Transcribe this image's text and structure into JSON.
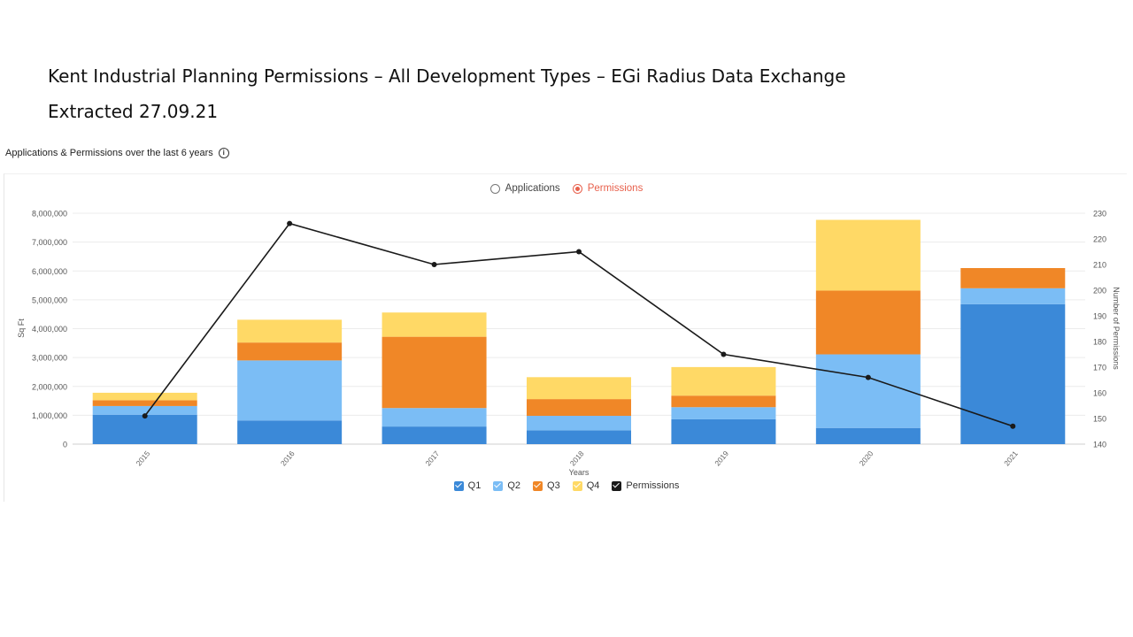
{
  "slide": {
    "title": "Kent Industrial Planning Permissions – All Development Types – EGi Radius Data Exchange",
    "subtitle": "Extracted 27.09.21"
  },
  "widget": {
    "title": "Applications & Permissions over the last 6 years",
    "info_icon": "info-icon"
  },
  "toggle": {
    "options": [
      {
        "label": "Applications",
        "selected": false
      },
      {
        "label": "Permissions",
        "selected": true
      }
    ],
    "accent": "#e8604c"
  },
  "chart_data": {
    "type": "bar",
    "stacked": true,
    "categories": [
      "2015",
      "2016",
      "2017",
      "2018",
      "2019",
      "2020",
      "2021"
    ],
    "xlabel": "Years",
    "ylabel": "Sq Ft",
    "y2label": "Number of Permissions",
    "ylim": [
      0,
      8000000
    ],
    "y2lim": [
      140,
      230
    ],
    "yticks": [
      "0",
      "1,000,000",
      "2,000,000",
      "3,000,000",
      "4,000,000",
      "5,000,000",
      "6,000,000",
      "7,000,000",
      "8,000,000"
    ],
    "y2ticks": [
      "140",
      "150",
      "160",
      "170",
      "180",
      "190",
      "200",
      "210",
      "220",
      "230"
    ],
    "grid": true,
    "legend_position": "bottom",
    "series": [
      {
        "name": "Q1",
        "color": "#3b89d8",
        "values": [
          1020000,
          820000,
          610000,
          480000,
          860000,
          560000,
          4850000
        ]
      },
      {
        "name": "Q2",
        "color": "#7bbdf5",
        "values": [
          300000,
          2080000,
          640000,
          500000,
          420000,
          2550000,
          550000
        ]
      },
      {
        "name": "Q3",
        "color": "#f08727",
        "values": [
          200000,
          620000,
          2470000,
          580000,
          400000,
          2210000,
          700000
        ]
      },
      {
        "name": "Q4",
        "color": "#ffd966",
        "values": [
          260000,
          790000,
          840000,
          760000,
          990000,
          2450000,
          0
        ]
      }
    ],
    "line_series": {
      "name": "Permissions",
      "color": "#1a1a1a",
      "axis": "right",
      "values": [
        151,
        226,
        210,
        215,
        175,
        166,
        147
      ]
    }
  }
}
